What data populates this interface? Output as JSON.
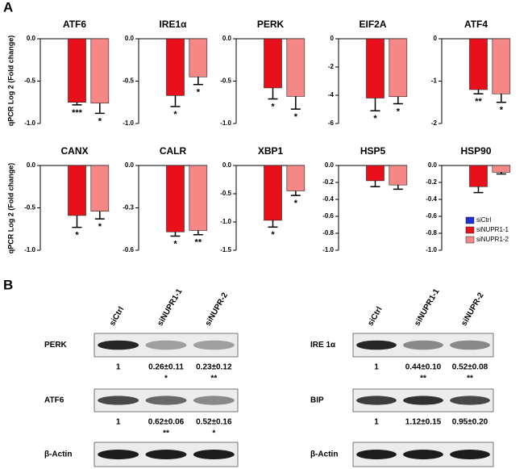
{
  "panel_a": {
    "label": "A",
    "y_label": "qPCR Log 2 (Fold change)"
  },
  "legend": {
    "names": [
      "siCtrl",
      "siNUPR1-1",
      "siNUPR1-2"
    ],
    "colors": [
      "#1f2fd6",
      "#e8101a",
      "#f58787"
    ],
    "position": "lower right"
  },
  "chart_data": [
    {
      "type": "bar",
      "title": "ATF6",
      "ylim": [
        -1,
        0
      ],
      "yticks": [
        {
          "value": 0,
          "label": "0.0"
        },
        -0.5,
        {
          "value": -1,
          "label": "-1.0"
        }
      ],
      "values": [
        0,
        -0.75,
        -0.76
      ],
      "errors": [
        null,
        0.03,
        0.12
      ],
      "significance": [
        null,
        "***",
        "*"
      ]
    },
    {
      "type": "bar",
      "title": "IRE1α",
      "ylim": [
        -1,
        0
      ],
      "yticks": [
        {
          "value": 0,
          "label": "0.0"
        },
        -0.5,
        {
          "value": -1,
          "label": "-1.0"
        }
      ],
      "values": [
        0,
        -0.67,
        -0.45
      ],
      "errors": [
        null,
        0.13,
        0.09
      ],
      "significance": [
        null,
        "*",
        "*"
      ]
    },
    {
      "type": "bar",
      "title": "PERK",
      "ylim": [
        -1,
        0
      ],
      "yticks": [
        {
          "value": 0,
          "label": "0.0"
        },
        -0.5,
        {
          "value": -1,
          "label": "-1.0"
        }
      ],
      "values": [
        0,
        -0.58,
        -0.68
      ],
      "errors": [
        null,
        0.13,
        0.15
      ],
      "significance": [
        null,
        "*",
        "*"
      ]
    },
    {
      "type": "bar",
      "title": "EIF2A",
      "ylim": [
        -6,
        0
      ],
      "yticks": [
        0,
        -2,
        -4,
        -6
      ],
      "values": [
        0,
        -4.2,
        -4.1
      ],
      "errors": [
        null,
        0.9,
        0.5
      ],
      "significance": [
        null,
        "*",
        "*"
      ]
    },
    {
      "type": "bar",
      "title": "ATF4",
      "ylim": [
        -2,
        0
      ],
      "yticks": [
        0,
        -1,
        -2
      ],
      "values": [
        0,
        -1.2,
        -1.3
      ],
      "errors": [
        null,
        0.1,
        0.2
      ],
      "significance": [
        null,
        "**",
        "*"
      ]
    },
    {
      "type": "bar",
      "title": "CANX",
      "ylim": [
        -1,
        0
      ],
      "yticks": [
        {
          "value": 0,
          "label": "0.0"
        },
        -0.5,
        {
          "value": -1,
          "label": "-1.0"
        }
      ],
      "values": [
        0,
        -0.59,
        -0.54
      ],
      "errors": [
        null,
        0.14,
        0.09
      ],
      "significance": [
        null,
        "*",
        "*"
      ]
    },
    {
      "type": "bar",
      "title": "CALR",
      "ylim": [
        -0.6,
        0
      ],
      "yticks": [
        {
          "value": 0,
          "label": "0.0"
        },
        -0.3,
        -0.6
      ],
      "values": [
        0,
        -0.47,
        -0.46
      ],
      "errors": [
        null,
        0.03,
        0.03
      ],
      "significance": [
        null,
        "*",
        "**"
      ]
    },
    {
      "type": "bar",
      "title": "XBP1",
      "ylim": [
        -1.5,
        0
      ],
      "yticks": [
        {
          "value": 0,
          "label": "0.0"
        },
        -0.5,
        {
          "value": -1,
          "label": "-1.0"
        },
        -1.5
      ],
      "values": [
        0,
        -0.97,
        -0.45
      ],
      "errors": [
        null,
        0.12,
        0.08
      ],
      "significance": [
        null,
        "*",
        "*"
      ]
    },
    {
      "type": "bar",
      "title": "HSP5",
      "ylim": [
        -1,
        0
      ],
      "yticks": [
        {
          "value": 0,
          "label": "0.0"
        },
        -0.2,
        -0.4,
        -0.6,
        -0.8,
        {
          "value": -1,
          "label": "-1.0"
        }
      ],
      "values": [
        0,
        -0.18,
        -0.23
      ],
      "errors": [
        null,
        0.07,
        0.05
      ]
    },
    {
      "type": "bar",
      "title": "HSP90",
      "ylim": [
        -1,
        0
      ],
      "yticks": [
        {
          "value": 0,
          "label": "0.0"
        },
        -0.2,
        -0.4,
        -0.6,
        -0.8,
        {
          "value": -1,
          "label": "-1.0"
        }
      ],
      "values": [
        0,
        -0.25,
        -0.08
      ],
      "errors": [
        null,
        0.07,
        0.02
      ]
    }
  ],
  "panel_b": {
    "label": "B",
    "blots": [
      {
        "lanes": [
          "siCtrl",
          "siNUPR1-1",
          "siNUPR-2"
        ],
        "rows": [
          {
            "protein": "PERK",
            "quant": [
              "1",
              "0.26±0.11",
              "0.23±0.12"
            ],
            "significance": [
              null,
              "*",
              "**"
            ]
          },
          {
            "protein": "ATF6",
            "quant": [
              "1",
              "0.62±0.06",
              "0.52±0.16"
            ],
            "significance": [
              null,
              "**",
              "*"
            ]
          },
          {
            "protein": "β-Actin"
          }
        ]
      },
      {
        "lanes": [
          "siCtrl",
          "siNUPR1-1",
          "siNUPR-2"
        ],
        "rows": [
          {
            "protein": "IRE 1α",
            "quant": [
              "1",
              "0.44±0.10",
              "0.52±0.08"
            ],
            "significance": [
              null,
              "**",
              "**"
            ]
          },
          {
            "protein": "BIP",
            "quant": [
              "1",
              "1.12±0.15",
              "0.95±0.20"
            ]
          },
          {
            "protein": "β-Actin"
          }
        ]
      }
    ]
  }
}
